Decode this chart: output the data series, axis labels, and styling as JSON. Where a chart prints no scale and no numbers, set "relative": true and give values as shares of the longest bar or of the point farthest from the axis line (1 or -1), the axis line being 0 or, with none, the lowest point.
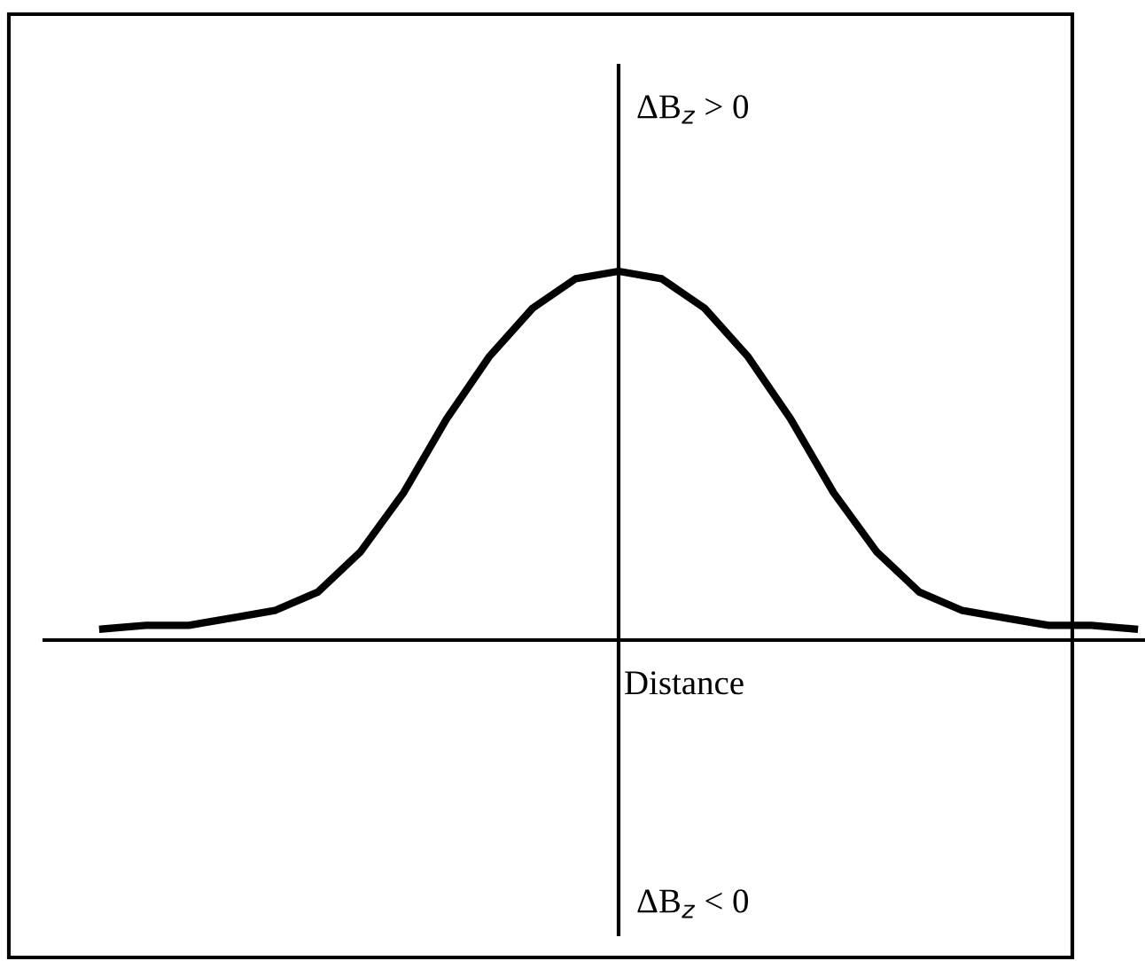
{
  "chart_data": {
    "type": "line",
    "relative": true,
    "xlabel": "Distance",
    "annotations": [
      "ΔB$_{z}$ > 0",
      "ΔB$_{z}$ < 0"
    ],
    "categories": [
      null,
      null,
      null,
      null,
      null,
      null,
      null,
      null,
      null,
      null,
      null,
      null,
      null,
      null,
      null,
      null,
      null,
      null,
      null,
      null,
      null,
      null,
      null,
      null,
      null
    ],
    "series": [
      {
        "color": "#000000",
        "values": [
          0.03,
          0.04,
          0.04,
          0.06,
          0.08,
          0.13,
          0.24,
          0.4,
          0.6,
          0.77,
          0.9,
          0.98,
          1.0,
          0.98,
          0.9,
          0.77,
          0.6,
          0.4,
          0.24,
          0.13,
          0.08,
          0.06,
          0.04,
          0.04,
          0.03
        ]
      }
    ],
    "legend": false,
    "marker": "none",
    "line_style": "solid"
  }
}
